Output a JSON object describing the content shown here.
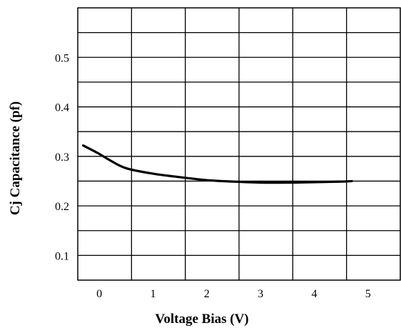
{
  "chart_data": {
    "type": "line",
    "title": "",
    "xlabel": "Voltage Bias (V)",
    "ylabel": "Cj Capacitance (pf)",
    "xlim": [
      -0.4,
      5.6
    ],
    "ylim": [
      0.05,
      0.6
    ],
    "grid": true,
    "x_ticks": [
      0,
      1,
      2,
      3,
      4,
      5
    ],
    "x_tick_labels": [
      "0",
      "1",
      "2",
      "3",
      "4",
      "5"
    ],
    "y_ticks": [
      0.1,
      0.2,
      0.3,
      0.4,
      0.5
    ],
    "y_tick_labels": [
      "0.1",
      "0.2",
      "0.3",
      "0.4",
      "0.5"
    ],
    "series": [
      {
        "x": [
          -0.3,
          0.0,
          0.2,
          0.5,
          1.0,
          1.5,
          2.0,
          2.5,
          3.0,
          3.5,
          4.0,
          4.5,
          4.7
        ],
        "y": [
          0.322,
          0.305,
          0.292,
          0.276,
          0.265,
          0.258,
          0.252,
          0.249,
          0.247,
          0.247,
          0.248,
          0.249,
          0.25
        ]
      }
    ]
  }
}
